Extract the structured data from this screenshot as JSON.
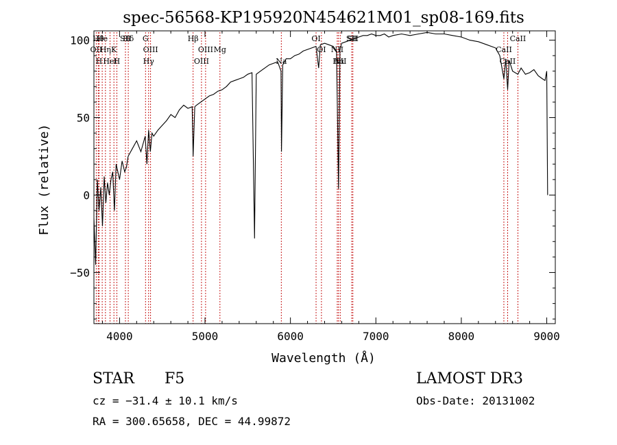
{
  "chart_data": {
    "type": "line",
    "title": "spec-56568-KP195920N454621M01_sp08-169.fits",
    "xlabel": "Wavelength (Å)",
    "ylabel": "Flux (relative)",
    "xlim": [
      3700,
      9100
    ],
    "ylim": [
      -83,
      106
    ],
    "xticks": [
      4000,
      5000,
      6000,
      7000,
      8000,
      9000
    ],
    "yticks": [
      -50,
      0,
      50,
      100
    ],
    "series": [
      {
        "name": "spectrum",
        "x": [
          3700,
          3720,
          3740,
          3760,
          3780,
          3800,
          3820,
          3840,
          3860,
          3880,
          3900,
          3920,
          3940,
          3960,
          3980,
          4000,
          4030,
          4060,
          4080,
          4100,
          4150,
          4200,
          4250,
          4300,
          4320,
          4340,
          4360,
          4380,
          4400,
          4450,
          4500,
          4550,
          4600,
          4650,
          4700,
          4750,
          4800,
          4850,
          4861,
          4880,
          4900,
          4950,
          5000,
          5050,
          5100,
          5150,
          5200,
          5250,
          5300,
          5350,
          5400,
          5450,
          5500,
          5550,
          5580,
          5600,
          5650,
          5700,
          5750,
          5800,
          5850,
          5890,
          5895,
          5910,
          5950,
          6000,
          6050,
          6100,
          6150,
          6200,
          6250,
          6300,
          6330,
          6350,
          6400,
          6450,
          6500,
          6540,
          6563,
          6580,
          6600,
          6650,
          6700,
          6750,
          6800,
          6850,
          6900,
          6950,
          7000,
          7050,
          7100,
          7150,
          7200,
          7300,
          7400,
          7500,
          7600,
          7700,
          7800,
          7900,
          8000,
          8100,
          8200,
          8300,
          8400,
          8450,
          8498,
          8520,
          8542,
          8560,
          8600,
          8662,
          8700,
          8750,
          8800,
          8850,
          8900,
          8950,
          8980,
          9000,
          9010
        ],
        "values": [
          -15,
          -45,
          10,
          -10,
          5,
          -20,
          12,
          -5,
          8,
          0,
          10,
          15,
          -10,
          20,
          15,
          10,
          22,
          15,
          18,
          25,
          30,
          35,
          28,
          38,
          20,
          42,
          28,
          40,
          38,
          42,
          45,
          48,
          52,
          50,
          55,
          58,
          56,
          57,
          25,
          57,
          58,
          60,
          62,
          64,
          65,
          67,
          68,
          70,
          73,
          74,
          75,
          76,
          78,
          79,
          -28,
          78,
          80,
          82,
          84,
          85,
          86,
          80,
          28,
          84,
          88,
          88,
          90,
          91,
          93,
          94,
          95,
          96,
          82,
          97,
          98,
          97,
          96,
          93,
          4,
          94,
          98,
          99,
          100,
          101,
          102,
          103,
          103,
          104,
          103,
          103,
          104,
          102,
          103,
          104,
          103,
          104,
          105,
          104,
          104,
          103,
          102,
          100,
          99,
          97,
          95,
          90,
          75,
          88,
          68,
          87,
          80,
          78,
          82,
          78,
          79,
          81,
          77,
          75,
          74,
          80,
          0
        ]
      }
    ],
    "lines": [
      {
        "label": "Hθ",
        "x": 3750
      },
      {
        "label": "OII",
        "x": 3727
      },
      {
        "label": "H",
        "x": 3760
      },
      {
        "label": "He",
        "x": 3797
      },
      {
        "label": "K",
        "x": 3934
      },
      {
        "label": "H",
        "x": 3968
      },
      {
        "label": "Hδ",
        "x": 4102
      },
      {
        "label": "Hη",
        "x": 3835
      },
      {
        "label": "HeI",
        "x": 3889
      },
      {
        "label": "SII",
        "x": 4069
      },
      {
        "label": "OIII",
        "x": 4363
      },
      {
        "label": "Hγ",
        "x": 4340
      },
      {
        "label": "G",
        "x": 4304
      },
      {
        "label": "OIII",
        "x": 5007
      },
      {
        "label": "OIII",
        "x": 4959
      },
      {
        "label": "Hβ",
        "x": 4861
      },
      {
        "label": "Mg",
        "x": 5175
      },
      {
        "label": "Na",
        "x": 5893
      },
      {
        "label": "OI",
        "x": 6300
      },
      {
        "label": "OI",
        "x": 6363
      },
      {
        "label": "Hα",
        "x": 6563
      },
      {
        "label": "SII",
        "x": 6717
      },
      {
        "label": "NII",
        "x": 6548
      },
      {
        "label": "NII",
        "x": 6583
      },
      {
        "label": "SII",
        "x": 6731
      },
      {
        "label": "CaII",
        "x": 8498
      },
      {
        "label": "CaII",
        "x": 8542
      },
      {
        "label": "CaII",
        "x": 8662
      }
    ]
  },
  "info": {
    "object_class": "STAR",
    "subclass": "F5",
    "survey": "LAMOST DR3",
    "redshift": "cz = −31.4 ± 10.1 km/s",
    "obs_date": "Obs-Date: 20131002",
    "coords": "RA = 300.65658, DEC =  44.99872"
  }
}
